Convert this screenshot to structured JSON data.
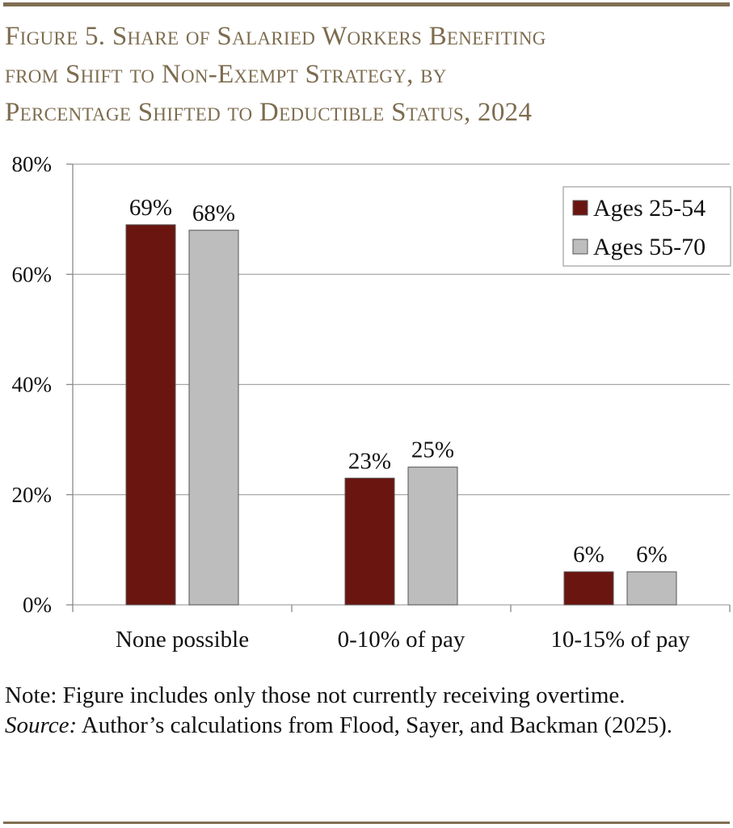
{
  "title_lines": [
    "Figure 5. Share of Salaried Workers Benefiting",
    "from Shift to Non-Exempt Strategy, by",
    "Percentage Shifted to Deductible Status, 2024"
  ],
  "note": {
    "line1": "Note: Figure includes only those not currently receiving overtime.",
    "source_label": "Source:",
    "source_text": " Author’s calculations from Flood, Sayer, and Backman (2025)."
  },
  "colors": {
    "series1": "#6b1510",
    "series2": "#bdbdbd",
    "title": "#7d6c4f",
    "rule": "#7f6e52"
  },
  "chart_data": {
    "type": "bar",
    "title": "Figure 5. Share of Salaried Workers Benefiting from Shift to Non-Exempt Strategy, by Percentage Shifted to Deductible Status, 2024",
    "categories": [
      "None possible",
      "0-10% of pay",
      "10-15% of pay"
    ],
    "series": [
      {
        "name": "Ages 25-54",
        "values": [
          69,
          23,
          6
        ],
        "labels": [
          "69%",
          "23%",
          "6%"
        ]
      },
      {
        "name": "Ages 55-70",
        "values": [
          68,
          25,
          6
        ],
        "labels": [
          "68%",
          "25%",
          "6%"
        ]
      }
    ],
    "ylim": [
      0,
      80
    ],
    "yticks": [
      0,
      20,
      40,
      60,
      80
    ],
    "ytick_labels": [
      "0%",
      "20%",
      "40%",
      "60%",
      "80%"
    ],
    "grid": true,
    "legend": "top-right",
    "xlabel": "",
    "ylabel": ""
  }
}
